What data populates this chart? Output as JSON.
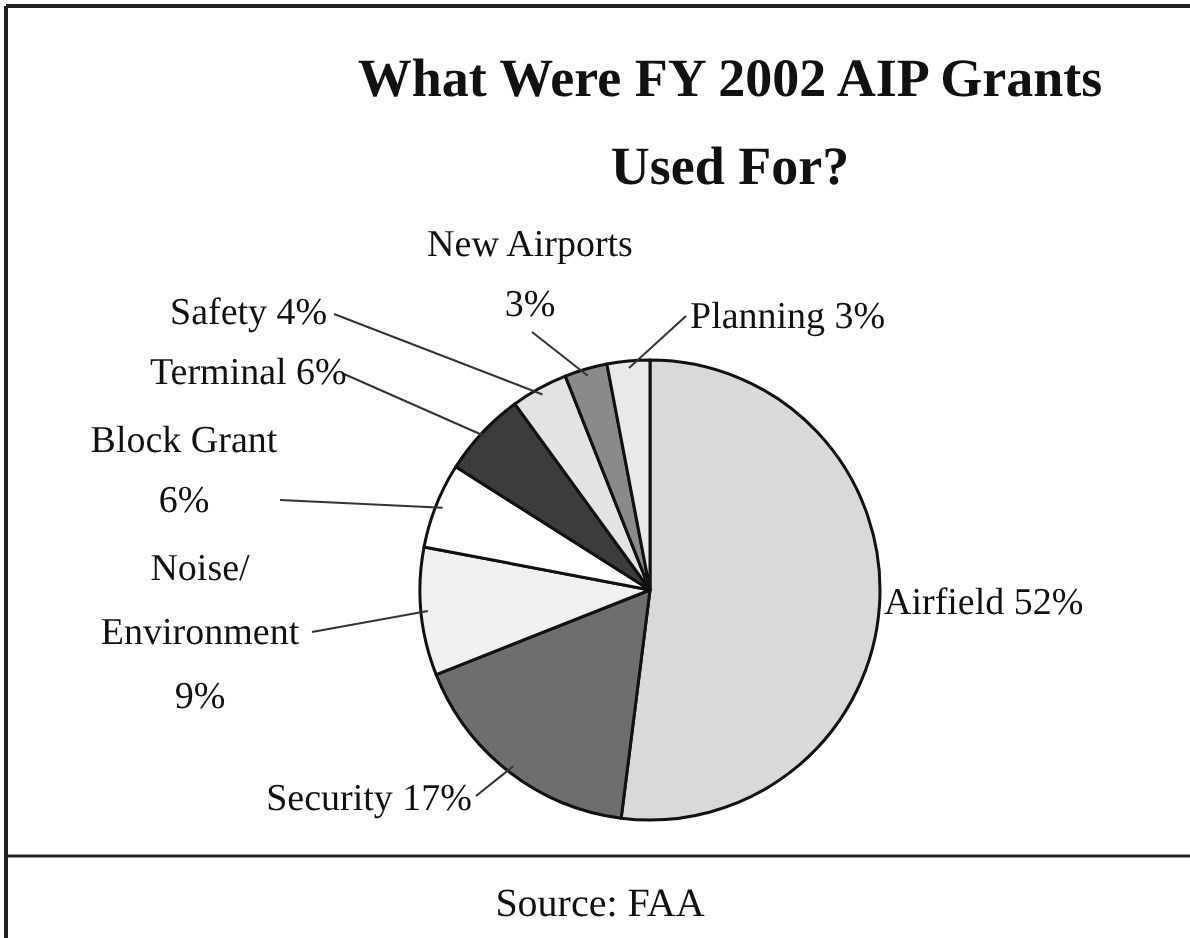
{
  "chart_data": {
    "type": "pie",
    "title": "What Were FY 2002 AIP Grants Used For?",
    "categories": [
      "Airfield",
      "Security",
      "Noise/ Environment",
      "Block Grant",
      "Terminal",
      "Safety",
      "New Airports",
      "Planning"
    ],
    "values": [
      52,
      17,
      9,
      6,
      6,
      4,
      3,
      3
    ],
    "colors": [
      "#d9d9d9",
      "#6e6e6e",
      "#f0f0f0",
      "#ffffff",
      "#3c3c3c",
      "#e3e3e3",
      "#8a8a8a",
      "#e9e9e9"
    ],
    "value_labels": [
      "52%",
      "17%",
      "9%",
      "6%",
      "6%",
      "4%",
      "3%",
      "3%"
    ],
    "annotations": [
      "Source: FAA"
    ]
  }
}
